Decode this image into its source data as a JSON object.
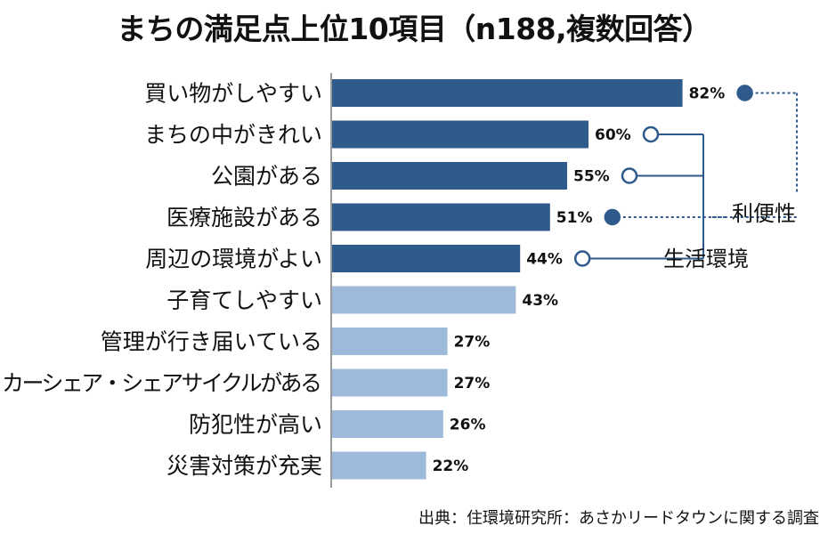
{
  "title": "まちの満足点上位10項目（n188,複数回答）",
  "source": "出典：住環境研究所：あさかリードタウンに関する調査",
  "colors": {
    "dark_bar": "#2e5a8c",
    "light_bar": "#9dbadb",
    "connector": "#2e5a8c"
  },
  "legend": {
    "convenience": "利便性",
    "living_environment": "生活環境"
  },
  "chart_data": {
    "type": "bar",
    "orientation": "horizontal",
    "title": "まちの満足点上位10項目（n188,複数回答）",
    "categories": [
      "買い物がしやすい",
      "まちの中がきれい",
      "公園がある",
      "医療施設がある",
      "周辺の環境がよい",
      "子育てしやすい",
      "管理が行き届いている",
      "カーシェア・シェアサイクルがある",
      "防犯性が高い",
      "災害対策が充実"
    ],
    "values": [
      82,
      60,
      55,
      51,
      44,
      43,
      27,
      27,
      26,
      22
    ],
    "value_labels": [
      "82%",
      "60%",
      "55%",
      "51%",
      "44%",
      "43%",
      "27%",
      "27%",
      "26%",
      "22%"
    ],
    "highlighted": [
      true,
      true,
      true,
      true,
      true,
      false,
      false,
      false,
      false,
      false
    ],
    "groups": [
      {
        "label": "利便性",
        "members": [
          0,
          3
        ],
        "marker": "filled",
        "line": "dotted"
      },
      {
        "label": "生活環境",
        "members": [
          1,
          2,
          4
        ],
        "marker": "open",
        "line": "solid"
      }
    ],
    "xlim": [
      0,
      100
    ]
  }
}
